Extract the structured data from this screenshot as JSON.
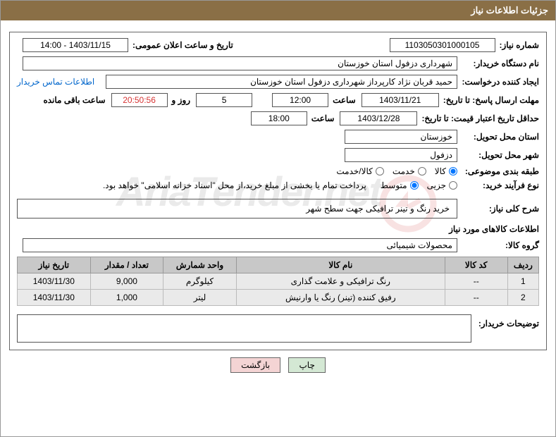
{
  "header": {
    "title": "جزئیات اطلاعات نیاز"
  },
  "fields": {
    "needNumber": {
      "label": "شماره نیاز:",
      "value": "1103050301000105"
    },
    "announceDate": {
      "label": "تاریخ و ساعت اعلان عمومی:",
      "value": "1403/11/15 - 14:00"
    },
    "buyerOrg": {
      "label": "نام دستگاه خریدار:",
      "value": "شهرداری دزفول استان خوزستان"
    },
    "requester": {
      "label": "ایجاد کننده درخواست:",
      "value": "حمید قربان نژاد کارپرداز شهرداری دزفول استان خوزستان"
    },
    "contactLink": "اطلاعات تماس خریدار",
    "responseDeadline": {
      "label": "مهلت ارسال پاسخ: تا تاریخ:",
      "date": "1403/11/21",
      "timeLabel": "ساعت",
      "time": "12:00",
      "daysLabel": "روز و",
      "days": "5",
      "countdown": "20:50:56",
      "remainLabel": "ساعت باقی مانده"
    },
    "priceValidity": {
      "label": "حداقل تاریخ اعتبار قیمت: تا تاریخ:",
      "date": "1403/12/28",
      "timeLabel": "ساعت",
      "time": "18:00"
    },
    "deliveryProvince": {
      "label": "استان محل تحویل:",
      "value": "خوزستان"
    },
    "deliveryCity": {
      "label": "شهر محل تحویل:",
      "value": "دزفول"
    },
    "category": {
      "label": "طبقه بندی موضوعی:",
      "options": [
        "کالا",
        "خدمت",
        "کالا/خدمت"
      ],
      "selected": 0
    },
    "purchaseType": {
      "label": "نوع فرآیند خرید:",
      "options": [
        "جزیی",
        "متوسط"
      ],
      "selected": 1,
      "note": "پرداخت تمام یا بخشی از مبلغ خرید،از محل \"اسناد خزانه اسلامی\" خواهد بود."
    },
    "generalDesc": {
      "label": "شرح کلی نیاز:",
      "value": "خرید رنگ و تینر ترافیکی جهت سطح شهر"
    },
    "goodsInfoTitle": "اطلاعات کالاهای مورد نیاز",
    "goodsGroup": {
      "label": "گروه کالا:",
      "value": "محصولات شیمیائی"
    },
    "buyerNotes": {
      "label": "توضیحات خریدار:"
    }
  },
  "table": {
    "headers": [
      "ردیف",
      "کد کالا",
      "نام کالا",
      "واحد شمارش",
      "تعداد / مقدار",
      "تاریخ نیاز"
    ],
    "rows": [
      [
        "1",
        "--",
        "رنگ ترافیکی و علامت گذاری",
        "کیلوگرم",
        "9,000",
        "1403/11/30"
      ],
      [
        "2",
        "--",
        "رفیق کننده (تینر) رنگ یا وارنیش",
        "لیتر",
        "1,000",
        "1403/11/30"
      ]
    ]
  },
  "buttons": {
    "print": "چاپ",
    "back": "بازگشت"
  },
  "watermark": "AriaTender.net"
}
